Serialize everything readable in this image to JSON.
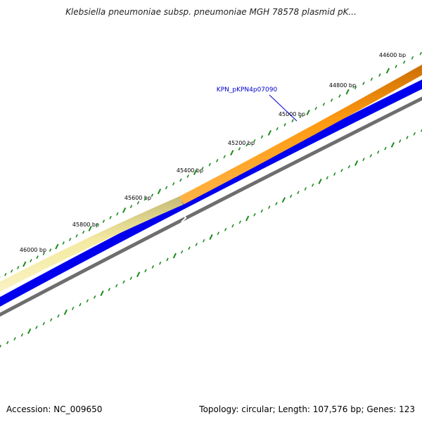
{
  "title": "Klebsiella pneumoniae subsp. pneumoniae MGH 78578 plasmid pK...",
  "ruler_ticks": [
    {
      "label": "44600 bp"
    },
    {
      "label": "44800 bp"
    },
    {
      "label": "45000 bp"
    },
    {
      "label": "45200 bp"
    },
    {
      "label": "45400 bp"
    },
    {
      "label": "45600 bp"
    },
    {
      "label": "45800 bp"
    },
    {
      "label": "46000 bp"
    }
  ],
  "gene_label": "KPN_pKPN4p07090",
  "footer": {
    "accession": "Accession: NC_009650",
    "summary": "Topology: circular; Length: 107,576 bp; Genes: 123"
  },
  "colors": {
    "orange_feature": "#ff8c00",
    "light_feature": "#f3e9a0",
    "blue_track": "#0000ee",
    "backbone": "#808080",
    "ticks": "#1a8a1a",
    "gene_label": "#0000cc"
  }
}
